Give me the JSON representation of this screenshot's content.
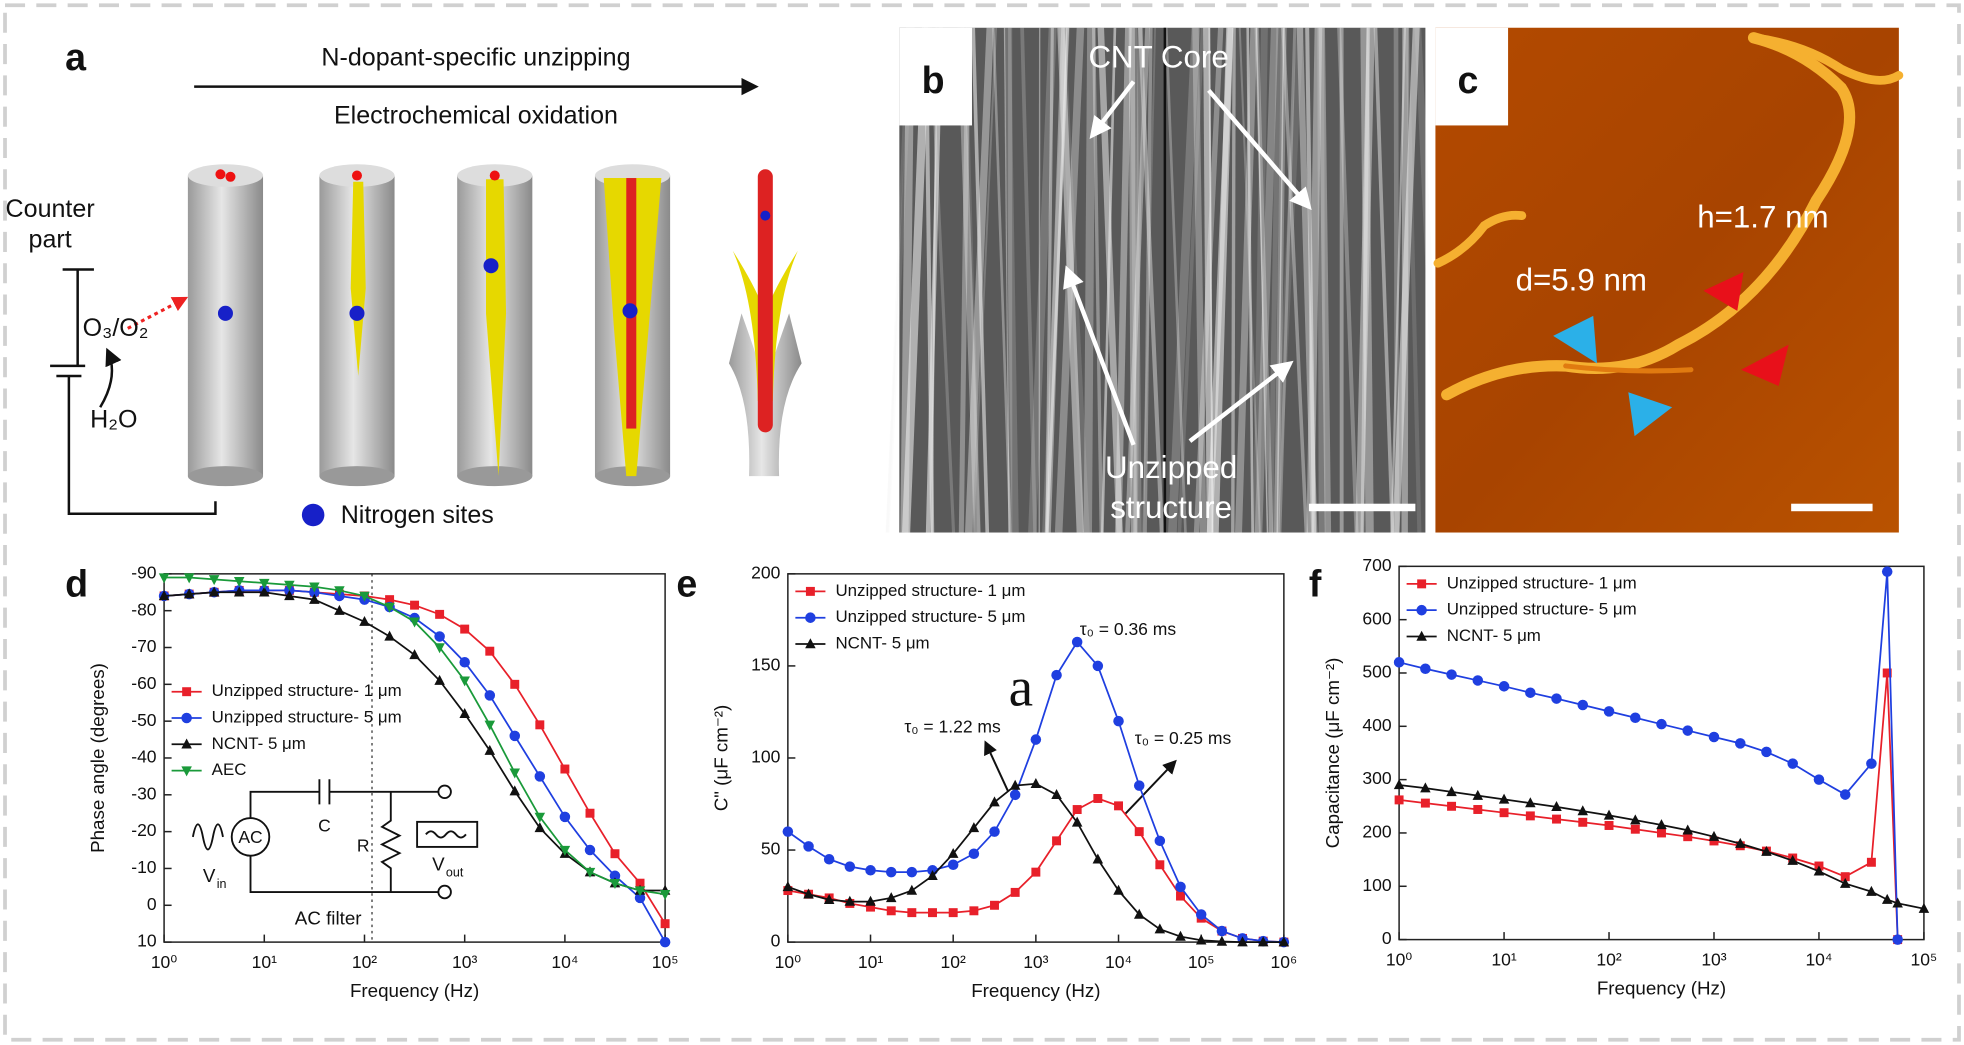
{
  "panels": {
    "a": {
      "label": "a",
      "arrow_top": "N-dopant-specific unzipping",
      "arrow_bottom": "Electrochemical oxidation",
      "counter": [
        "Counter",
        "part"
      ],
      "oxidant": "O₃/O₂",
      "water": "H₂O",
      "legend": "Nitrogen sites"
    },
    "b": {
      "label": "b",
      "core": "CNT Core",
      "unzipped": [
        "Unzipped",
        "structure"
      ]
    },
    "c": {
      "label": "c",
      "height": "h=1.7 nm",
      "diameter": "d=5.9 nm"
    }
  },
  "chart_data": [
    {
      "type": "line",
      "panel_label": "d",
      "x_label": "Frequency (Hz)",
      "y_label": "Phase angle (degrees)",
      "xscale": "log",
      "xlim": [
        1,
        100000
      ],
      "xticks": [
        {
          "value": 1,
          "label": "10⁰"
        },
        {
          "value": 10,
          "label": "10¹"
        },
        {
          "value": 100,
          "label": "10²"
        },
        {
          "value": 1000,
          "label": "10³"
        },
        {
          "value": 10000,
          "label": "10⁴"
        },
        {
          "value": 100000,
          "label": "10⁵"
        }
      ],
      "ylim": [
        10,
        -90
      ],
      "yticks": [
        -90,
        -80,
        -70,
        -60,
        -50,
        -40,
        -30,
        -20,
        -10,
        0,
        10
      ],
      "legend": "center left",
      "x": [
        1,
        1.78,
        3.16,
        5.62,
        10,
        17.8,
        31.6,
        56.2,
        100,
        178,
        316,
        562,
        1000,
        1780,
        3160,
        5620,
        10000,
        17800,
        31600,
        56200,
        100000
      ],
      "series": [
        {
          "name": "Unzipped structure- 1 μm",
          "color": "#e8202a",
          "marker": "square",
          "values": [
            -84,
            -84.5,
            -85,
            -85.5,
            -85.5,
            -85.5,
            -85,
            -84.5,
            -84,
            -83,
            -81.5,
            -79,
            -75,
            -69,
            -60,
            -49,
            -37,
            -25,
            -14,
            -6,
            5
          ]
        },
        {
          "name": "Unzipped structure- 5 μm",
          "color": "#1f3fe0",
          "marker": "circle",
          "values": [
            -84,
            -84.5,
            -85,
            -85.5,
            -85.5,
            -85.5,
            -85,
            -84,
            -83,
            -81,
            -78,
            -73,
            -66,
            -57,
            -46,
            -35,
            -24,
            -15,
            -8,
            -2,
            10
          ]
        },
        {
          "name": "NCNT- 5 μm",
          "color": "#111111",
          "marker": "triangle",
          "values": [
            -84,
            -84.5,
            -85,
            -85,
            -85,
            -84,
            -83,
            -80,
            -77,
            -73,
            -68,
            -61,
            -52,
            -42,
            -31,
            -21,
            -14,
            -9,
            -6,
            -4,
            -4
          ]
        },
        {
          "name": "AEC",
          "color": "#1a9a3a",
          "marker": "triangle-down",
          "values": [
            -89,
            -89,
            -88.5,
            -88,
            -87.5,
            -87,
            -86.5,
            -85.5,
            -84,
            -81,
            -77,
            -70,
            -61,
            -49,
            -36,
            -24,
            -15,
            -9,
            -6,
            -4,
            -3
          ]
        }
      ],
      "inset": {
        "source": "AC",
        "capacitor": "C",
        "resistor": "R",
        "v_in": "V",
        "v_in_sub": "in",
        "v_out": "V",
        "v_out_sub": "out",
        "caption": "AC filter"
      }
    },
    {
      "type": "line",
      "panel_label": "e",
      "x_label": "Frequency (Hz)",
      "y_label": "C\" (μF cm⁻²)",
      "xscale": "log",
      "xlim": [
        1,
        1000000
      ],
      "xticks": [
        {
          "value": 1,
          "label": "10⁰"
        },
        {
          "value": 10,
          "label": "10¹"
        },
        {
          "value": 100,
          "label": "10²"
        },
        {
          "value": 1000,
          "label": "10³"
        },
        {
          "value": 10000,
          "label": "10⁴"
        },
        {
          "value": 100000,
          "label": "10⁵"
        },
        {
          "value": 1000000,
          "label": "10⁶"
        }
      ],
      "ylim": [
        0,
        200
      ],
      "yticks": [
        0,
        50,
        100,
        150,
        200
      ],
      "legend": "upper left",
      "x": [
        1,
        1.78,
        3.16,
        5.62,
        10,
        17.8,
        31.6,
        56.2,
        100,
        178,
        316,
        562,
        1000,
        1780,
        3160,
        5620,
        10000,
        17800,
        31600,
        56200,
        100000,
        178000,
        316000,
        562000,
        1000000
      ],
      "series": [
        {
          "name": "Unzipped structure- 1 μm",
          "color": "#e8202a",
          "marker": "square",
          "values": [
            28,
            26,
            24,
            21,
            19,
            17,
            16,
            16,
            16,
            17,
            20,
            27,
            38,
            55,
            72,
            78,
            74,
            60,
            42,
            25,
            13,
            6,
            2,
            0.5,
            0
          ]
        },
        {
          "name": "Unzipped structure- 5 μm",
          "color": "#1f3fe0",
          "marker": "circle",
          "values": [
            60,
            52,
            45,
            41,
            39,
            38,
            38,
            39,
            42,
            48,
            60,
            80,
            110,
            145,
            163,
            150,
            120,
            85,
            55,
            30,
            15,
            6,
            2,
            0.5,
            0
          ]
        },
        {
          "name": "NCNT- 5 μm",
          "color": "#111111",
          "marker": "triangle",
          "values": [
            30,
            26,
            23,
            22,
            22,
            24,
            28,
            36,
            48,
            62,
            76,
            85,
            86,
            80,
            65,
            45,
            28,
            15,
            7,
            3,
            1,
            0.3,
            0,
            0,
            0
          ]
        }
      ],
      "annotations": [
        "τ₀ = 0.36 ms",
        "τ₀ = 1.22 ms",
        "τ₀ = 0.25 ms",
        "a"
      ]
    },
    {
      "type": "line",
      "panel_label": "f",
      "x_label": "Frequency (Hz)",
      "y_label": "Capacitance (μF cm⁻²)",
      "xscale": "log",
      "xlim": [
        1,
        100000
      ],
      "xticks": [
        {
          "value": 1,
          "label": "10⁰"
        },
        {
          "value": 10,
          "label": "10¹"
        },
        {
          "value": 100,
          "label": "10²"
        },
        {
          "value": 1000,
          "label": "10³"
        },
        {
          "value": 10000,
          "label": "10⁴"
        },
        {
          "value": 100000,
          "label": "10⁵"
        }
      ],
      "ylim": [
        0,
        700
      ],
      "yticks": [
        0,
        100,
        200,
        300,
        400,
        500,
        600,
        700
      ],
      "legend": "upper left",
      "x": [
        1,
        1.78,
        3.16,
        5.62,
        10,
        17.8,
        31.6,
        56.2,
        100,
        178,
        316,
        562,
        1000,
        1780,
        3160,
        5620,
        10000,
        17800,
        31600,
        44700,
        56200,
        100000
      ],
      "series": [
        {
          "name": "Unzipped structure- 1 μm",
          "color": "#e8202a",
          "marker": "square",
          "values": [
            262,
            256,
            250,
            244,
            238,
            232,
            226,
            220,
            214,
            207,
            200,
            193,
            185,
            176,
            166,
            153,
            138,
            118,
            145,
            500,
            0,
            null
          ]
        },
        {
          "name": "Unzipped structure- 5 μm",
          "color": "#1f3fe0",
          "marker": "circle",
          "values": [
            520,
            508,
            497,
            486,
            475,
            463,
            452,
            440,
            428,
            416,
            404,
            392,
            380,
            368,
            352,
            330,
            300,
            272,
            330,
            690,
            0,
            null
          ]
        },
        {
          "name": "NCNT- 5 μm",
          "color": "#111111",
          "marker": "triangle",
          "values": [
            290,
            284,
            277,
            270,
            263,
            256,
            249,
            241,
            233,
            224,
            215,
            205,
            193,
            180,
            165,
            148,
            128,
            105,
            90,
            75,
            68,
            58
          ]
        }
      ]
    }
  ]
}
